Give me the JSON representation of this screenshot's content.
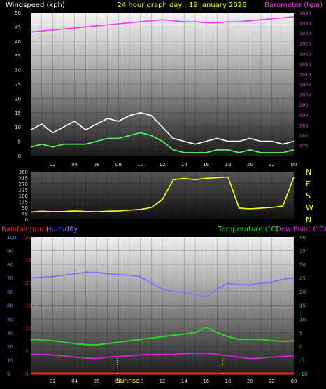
{
  "header": {
    "windspeed_label": "Windspeed (kph)",
    "graph_title": "24 hour graph day : 19 January 2026",
    "barometer_label": "Barometer (hpa)"
  },
  "compass_labels": [
    "N",
    "W",
    "S",
    "E",
    "N"
  ],
  "lower_labels": {
    "rainfall": "Rainfall (mm)",
    "humidity": "Humidity",
    "temperature": "Temperature (°C)",
    "dewpoint": "Dew Point (°C)",
    "sunrise": "Sunrise"
  },
  "colors": {
    "windspeed_label": "#ffffff",
    "title": "#ffff00",
    "barometer": "#ff33ff",
    "gust": "#ffffff",
    "average_wind": "#55ff55",
    "wind_direction": "#ffff00",
    "rainfall": "#ff2222",
    "humidity": "#7777ff",
    "temperature": "#22dd22",
    "dewpoint": "#dd22dd"
  },
  "chart_data": [
    {
      "type": "line",
      "name": "wind-barometer",
      "x_ticks": [
        "02",
        "04",
        "06",
        "08",
        "10",
        "12",
        "14",
        "16",
        "18",
        "20",
        "22",
        "00"
      ],
      "ylim_left": [
        0,
        50
      ],
      "yticks_left": [
        "0",
        "5",
        "10",
        "15",
        "20",
        "25",
        "30",
        "35",
        "40",
        "45",
        "50"
      ],
      "ylim_right": [
        970,
        1040
      ],
      "yticks_right": [
        "975",
        "980",
        "985",
        "990",
        "995",
        "1000",
        "1005",
        "1010",
        "1015",
        "1020",
        "1025",
        "1030",
        "1035",
        "1040"
      ],
      "x": [
        0,
        1,
        2,
        3,
        4,
        5,
        6,
        7,
        8,
        9,
        10,
        11,
        12,
        13,
        14,
        15,
        16,
        17,
        18,
        19,
        20,
        21,
        22,
        23,
        24
      ],
      "series": [
        {
          "key": "barometer",
          "axis": "right",
          "values": [
            1030.5,
            1031,
            1031.5,
            1032,
            1032.5,
            1033,
            1033.5,
            1034,
            1034.5,
            1035,
            1035.5,
            1036,
            1036.5,
            1036,
            1035.5,
            1035.5,
            1035,
            1035,
            1035.5,
            1035.5,
            1036,
            1036.5,
            1037,
            1037.5,
            1038
          ]
        },
        {
          "key": "gust",
          "axis": "left",
          "values": [
            9,
            11,
            8,
            10,
            12,
            9,
            11,
            13,
            12,
            14,
            15,
            14,
            10,
            6,
            5,
            4,
            5,
            6,
            5,
            5,
            6,
            5,
            5,
            4,
            5
          ]
        },
        {
          "key": "average_wind",
          "axis": "left",
          "values": [
            3,
            4,
            3,
            4,
            4,
            4,
            5,
            6,
            6,
            7,
            8,
            7,
            5,
            2,
            1,
            1,
            1,
            2,
            2,
            1,
            2,
            1,
            1,
            1,
            2
          ]
        }
      ]
    },
    {
      "type": "line",
      "name": "wind-direction",
      "x_ticks": [
        "02",
        "04",
        "06",
        "08",
        "10",
        "12",
        "14",
        "16",
        "18",
        "20",
        "22",
        "00"
      ],
      "ylim": [
        0,
        360
      ],
      "yticks": [
        "0",
        "45",
        "90",
        "135",
        "180",
        "225",
        "270",
        "315",
        "360"
      ],
      "x": [
        0,
        1,
        2,
        3,
        4,
        5,
        6,
        7,
        8,
        9,
        10,
        11,
        12,
        13,
        14,
        15,
        16,
        17,
        18,
        19,
        20,
        21,
        22,
        23,
        24
      ],
      "values": [
        55,
        62,
        58,
        60,
        64,
        60,
        58,
        62,
        64,
        70,
        75,
        90,
        150,
        300,
        310,
        300,
        310,
        315,
        320,
        85,
        80,
        85,
        90,
        100,
        320
      ]
    },
    {
      "type": "line",
      "name": "temperature-humidity-rain",
      "x_ticks": [
        "02",
        "04",
        "06",
        "08",
        "10",
        "12",
        "14",
        "16",
        "18",
        "20",
        "22",
        "00"
      ],
      "ylim_humidity": [
        0,
        100
      ],
      "yticks_humidity": [
        "0",
        "10",
        "20",
        "30",
        "40",
        "50",
        "60",
        "70",
        "80",
        "90",
        "100"
      ],
      "ylim_rain": [
        0,
        30
      ],
      "yticks_rain": [
        "0",
        "5",
        "10",
        "15",
        "20",
        "25",
        "30"
      ],
      "ylim_temp": [
        -10,
        40
      ],
      "yticks_temp": [
        "-10",
        "-5",
        "0",
        "5",
        "10",
        "15",
        "20",
        "25",
        "30",
        "35",
        "40"
      ],
      "x": [
        0,
        1,
        2,
        3,
        4,
        5,
        6,
        7,
        8,
        9,
        10,
        11,
        12,
        13,
        14,
        15,
        16,
        17,
        18,
        19,
        20,
        21,
        22,
        23,
        24
      ],
      "series": [
        {
          "key": "humidity",
          "values": [
            70,
            70.5,
            71,
            72,
            73,
            74,
            74,
            73,
            72.5,
            72,
            71,
            66,
            62,
            60,
            59,
            58,
            56,
            62,
            66,
            65,
            65,
            66,
            67,
            69,
            70
          ]
        },
        {
          "key": "temperature",
          "values": [
            2.5,
            2.3,
            2,
            1.5,
            1,
            0.6,
            0.5,
            1,
            1.5,
            2,
            2.5,
            3,
            3.5,
            4,
            4.5,
            5,
            7,
            5,
            3.5,
            2.5,
            2.5,
            2.5,
            2,
            1.8,
            2
          ]
        },
        {
          "key": "dewpoint",
          "values": [
            -3,
            -3,
            -3.2,
            -3.5,
            -4,
            -4.3,
            -4.5,
            -4,
            -3.8,
            -3.5,
            -3.2,
            -3,
            -3,
            -3,
            -2.8,
            -2.6,
            -2.5,
            -3,
            -3.5,
            -4,
            -4.5,
            -4.3,
            -4,
            -3.8,
            -3.5
          ]
        },
        {
          "key": "rainfall",
          "values": [
            0,
            0,
            0,
            0,
            0,
            0,
            0,
            0,
            0,
            0,
            0,
            0,
            0,
            0,
            0,
            0,
            0,
            0,
            0,
            0,
            0,
            0,
            0,
            0,
            0
          ]
        }
      ],
      "sunrise_hour": 7.9,
      "sunset_hour": 17.5
    }
  ]
}
